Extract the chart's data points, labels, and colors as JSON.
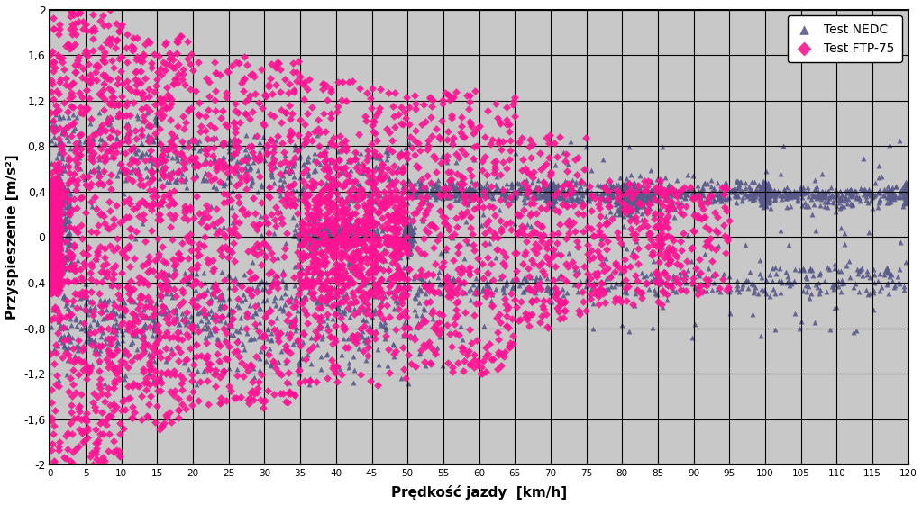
{
  "title": "",
  "xlabel": "Prędkość jazdy  [km/h]",
  "ylabel": "Przyspieszenie [m/s²]",
  "xlim": [
    0,
    120
  ],
  "ylim": [
    -2,
    2
  ],
  "xticks": [
    0,
    5,
    10,
    15,
    20,
    25,
    30,
    35,
    40,
    45,
    50,
    55,
    60,
    65,
    70,
    75,
    80,
    85,
    90,
    95,
    100,
    105,
    110,
    115,
    120
  ],
  "yticks": [
    -2,
    -1.6,
    -1.2,
    -0.8,
    -0.4,
    0,
    0.4,
    0.8,
    1.2,
    1.6,
    2
  ],
  "nedc_color": "#5a5a8a",
  "ftp_color": "#ff1493",
  "bg_color": "#c8c8c8",
  "legend_nedc": "Test NEDC",
  "legend_ftp": "Test FTP-75",
  "seed": 42
}
